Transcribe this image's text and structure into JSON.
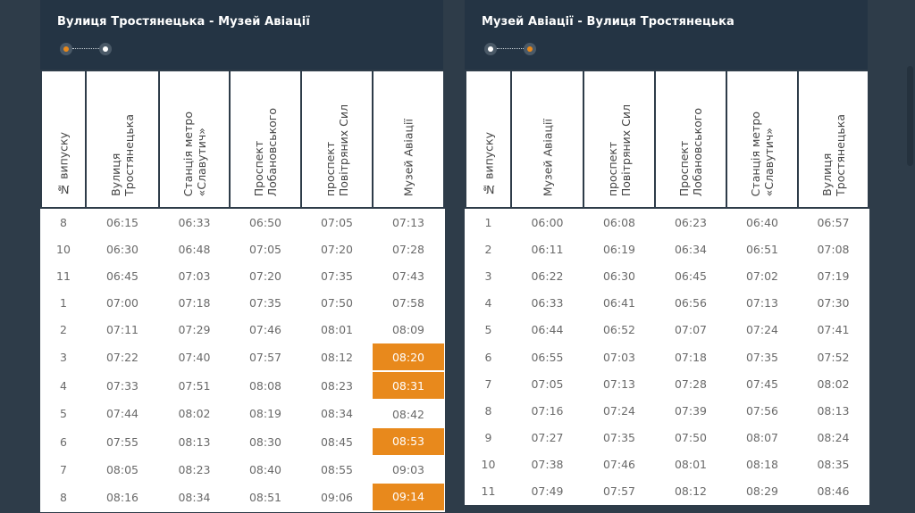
{
  "accent_color": "#e8891c",
  "left": {
    "title": "Вулиця Тростянецька - Музей Авіації",
    "columns": [
      "№ випуску",
      "Вулиця\nТростянецька",
      "Станція метро\n«Славутич»",
      "Проспект\nЛобановського",
      "проспект\nПовітряних Сил",
      "Музей Авіації"
    ],
    "rows": [
      [
        "8",
        "06:15",
        "06:33",
        "06:50",
        "07:05",
        "07:13"
      ],
      [
        "10",
        "06:30",
        "06:48",
        "07:05",
        "07:20",
        "07:28"
      ],
      [
        "11",
        "06:45",
        "07:03",
        "07:20",
        "07:35",
        "07:43"
      ],
      [
        "1",
        "07:00",
        "07:18",
        "07:35",
        "07:50",
        "07:58"
      ],
      [
        "2",
        "07:11",
        "07:29",
        "07:46",
        "08:01",
        "08:09"
      ],
      [
        "3",
        "07:22",
        "07:40",
        "07:57",
        "08:12",
        "08:20"
      ],
      [
        "4",
        "07:33",
        "07:51",
        "08:08",
        "08:23",
        "08:31"
      ],
      [
        "5",
        "07:44",
        "08:02",
        "08:19",
        "08:34",
        "08:42"
      ],
      [
        "6",
        "07:55",
        "08:13",
        "08:30",
        "08:45",
        "08:53"
      ],
      [
        "7",
        "08:05",
        "08:23",
        "08:40",
        "08:55",
        "09:03"
      ],
      [
        "8",
        "08:16",
        "08:34",
        "08:51",
        "09:06",
        "09:14"
      ]
    ],
    "highlighted_rows": [
      5,
      6,
      8,
      10
    ]
  },
  "right": {
    "title": "Музей Авіації - Вулиця Тростянецька",
    "columns": [
      "№ випуску",
      "Музей Авіації",
      "проспект\nПовітряних Сил",
      "Проспект\nЛобановського",
      "Станція метро\n«Славутич»",
      "Вулиця\nТростянецька"
    ],
    "rows": [
      [
        "1",
        "06:00",
        "06:08",
        "06:23",
        "06:40",
        "06:57"
      ],
      [
        "2",
        "06:11",
        "06:19",
        "06:34",
        "06:51",
        "07:08"
      ],
      [
        "3",
        "06:22",
        "06:30",
        "06:45",
        "07:02",
        "07:19"
      ],
      [
        "4",
        "06:33",
        "06:41",
        "06:56",
        "07:13",
        "07:30"
      ],
      [
        "5",
        "06:44",
        "06:52",
        "07:07",
        "07:24",
        "07:41"
      ],
      [
        "6",
        "06:55",
        "07:03",
        "07:18",
        "07:35",
        "07:52"
      ],
      [
        "7",
        "07:05",
        "07:13",
        "07:28",
        "07:45",
        "08:02"
      ],
      [
        "8",
        "07:16",
        "07:24",
        "07:39",
        "07:56",
        "08:13"
      ],
      [
        "9",
        "07:27",
        "07:35",
        "07:50",
        "08:07",
        "08:24"
      ],
      [
        "10",
        "07:38",
        "07:46",
        "08:01",
        "08:18",
        "08:35"
      ],
      [
        "11",
        "07:49",
        "07:57",
        "08:12",
        "08:29",
        "08:46"
      ]
    ],
    "highlighted_rows": []
  }
}
